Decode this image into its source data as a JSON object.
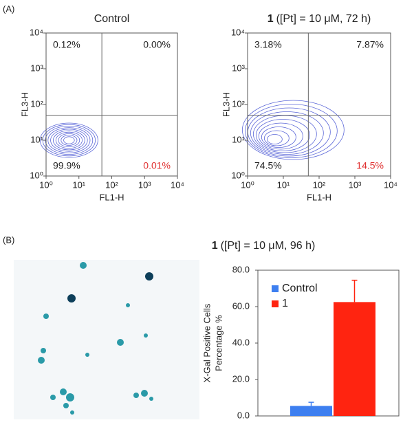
{
  "panel_labels": [
    "(A)",
    "(B)"
  ],
  "chart_data": [
    {
      "type": "flow",
      "title": "Control",
      "xlabel": "FL1-H",
      "ylabel": "FL3-H",
      "log_scale": true,
      "xlim": [
        1,
        10000
      ],
      "ylim": [
        1,
        10000
      ],
      "xticks": [
        {
          "value": 1,
          "label": "10⁰"
        },
        {
          "value": 10,
          "label": "10¹"
        },
        {
          "value": 100,
          "label": "10²"
        },
        {
          "value": 1000,
          "label": "10³"
        },
        {
          "value": 10000,
          "label": "10⁴"
        }
      ],
      "yticks": [
        {
          "value": 1,
          "label": "10⁰"
        },
        {
          "value": 10,
          "label": "10¹"
        },
        {
          "value": 100,
          "label": "10²"
        },
        {
          "value": 1000,
          "label": "10³"
        },
        {
          "value": 10000,
          "label": "10⁴"
        }
      ],
      "gate_x": 50,
      "gate_y": 50,
      "quadrant_names": [
        "upper-left",
        "upper-right",
        "lower-left",
        "lower-right"
      ],
      "values": [
        0.12,
        0.0,
        99.9,
        0.01
      ],
      "value_labels": [
        "0.12%",
        "0.00%",
        "99.9%",
        "0.01%"
      ],
      "quadrant_colors": [
        "#222222",
        "#222222",
        "#222222",
        "#e03030"
      ],
      "contour_color": "#5a66d8"
    },
    {
      "type": "flow",
      "title_number": "1",
      "title": "([Pt] = 10 μM, 72 h)",
      "xlabel": "FL1-H",
      "ylabel": "FL3-H",
      "log_scale": true,
      "xlim": [
        1,
        10000
      ],
      "ylim": [
        1,
        10000
      ],
      "xticks": [
        {
          "value": 1,
          "label": "10⁰"
        },
        {
          "value": 10,
          "label": "10¹"
        },
        {
          "value": 100,
          "label": "10²"
        },
        {
          "value": 1000,
          "label": "10³"
        },
        {
          "value": 10000,
          "label": "10⁴"
        }
      ],
      "yticks": [
        {
          "value": 1,
          "label": "10⁰"
        },
        {
          "value": 10,
          "label": "10¹"
        },
        {
          "value": 100,
          "label": "10²"
        },
        {
          "value": 1000,
          "label": "10³"
        },
        {
          "value": 10000,
          "label": "10⁴"
        }
      ],
      "gate_x": 50,
      "gate_y": 50,
      "quadrant_names": [
        "upper-left",
        "upper-right",
        "lower-left",
        "lower-right"
      ],
      "values": [
        3.18,
        7.87,
        74.5,
        14.5
      ],
      "value_labels": [
        "3.18%",
        "7.87%",
        "74.5%",
        "14.5%"
      ],
      "quadrant_colors": [
        "#222222",
        "#222222",
        "#222222",
        "#e03030"
      ],
      "contour_color": "#5a66d8"
    },
    {
      "type": "bar",
      "title_number": "1",
      "title": "([Pt] = 10 μM, 96 h)",
      "ylabel": [
        "X-Gal Positive Cells",
        "Percentage %"
      ],
      "ylim": [
        0,
        80
      ],
      "yticks": [
        {
          "value": 0,
          "label": "0.0"
        },
        {
          "value": 20,
          "label": "20.0"
        },
        {
          "value": 40,
          "label": "40.0"
        },
        {
          "value": 60,
          "label": "60.0"
        },
        {
          "value": 80,
          "label": "80.0"
        }
      ],
      "legend": "upper-left",
      "series": [
        {
          "name": "Control",
          "color": "#3d7ff0",
          "values": [
            5.5
          ],
          "errors": [
            2.0
          ]
        },
        {
          "name": "1",
          "color": "#ff2410",
          "values": [
            62.5
          ],
          "errors": [
            12.0
          ]
        }
      ]
    }
  ]
}
